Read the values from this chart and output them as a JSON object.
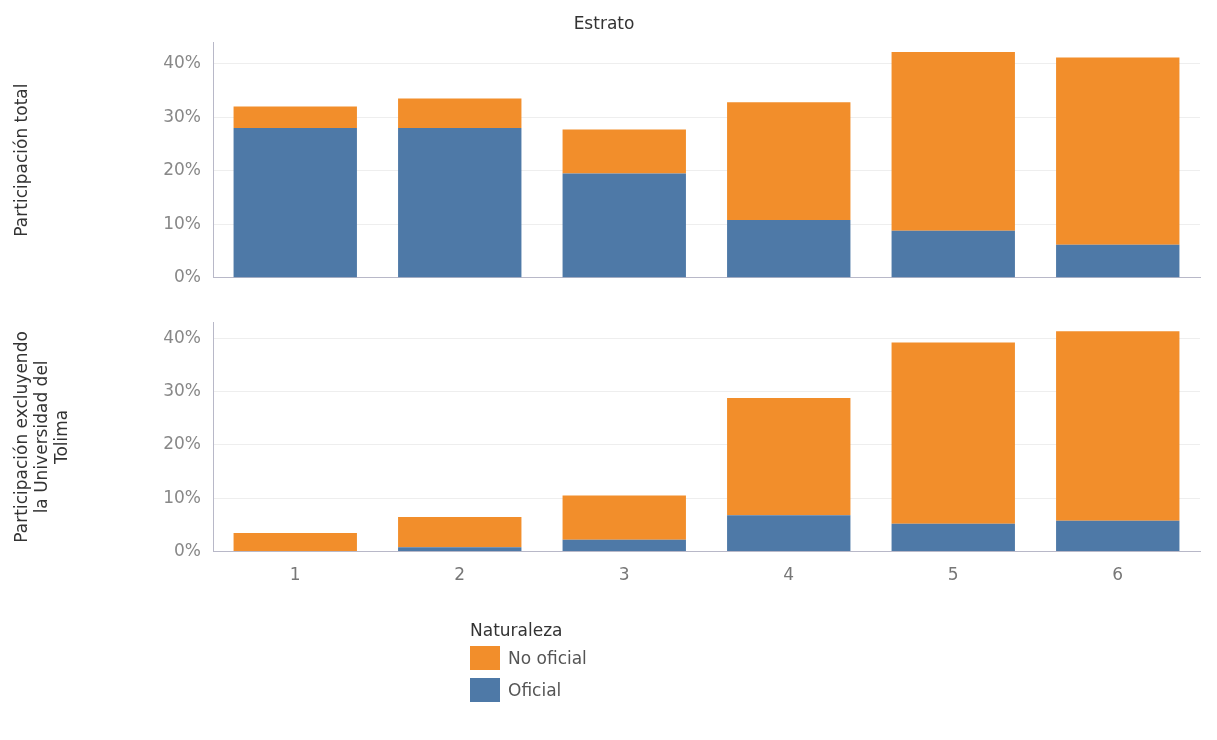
{
  "chart_data": [
    {
      "type": "bar",
      "title": "Estrato",
      "ylabel": "Participación total",
      "categories": [
        "1",
        "2",
        "3",
        "4",
        "5",
        "6"
      ],
      "stacked": true,
      "tick_labels": "y",
      "grid": "y",
      "legend": false,
      "series": [
        {
          "color": "#4e79a7",
          "values": [
            28,
            28,
            19.5,
            10.8,
            8.8,
            6.2
          ]
        },
        {
          "color": "#f28e2b",
          "values": [
            4,
            5.5,
            8.2,
            22,
            33.4,
            35
          ]
        }
      ],
      "ylim": [
        0,
        44
      ],
      "yticks": [
        {
          "value": 0,
          "label": "0%"
        },
        {
          "value": 10,
          "label": "10%"
        },
        {
          "value": 20,
          "label": "20%"
        },
        {
          "value": 30,
          "label": "30%"
        },
        {
          "value": 40,
          "label": "40%"
        }
      ]
    },
    {
      "type": "bar",
      "ylabel": "Participación excluyendo la Universidad del Tolima",
      "categories": [
        "1",
        "2",
        "3",
        "4",
        "5",
        "6"
      ],
      "stacked": true,
      "grid": "y",
      "legend": "bottom",
      "legend_title": "Naturaleza",
      "series": [
        {
          "name": "Oficial",
          "color": "#4e79a7",
          "values": [
            0,
            0.8,
            2.2,
            6.8,
            5.2,
            5.8
          ]
        },
        {
          "name": "No oficial",
          "color": "#f28e2b",
          "values": [
            3.5,
            5.7,
            8.3,
            22,
            34,
            35.5
          ]
        }
      ],
      "ylim": [
        0,
        43
      ],
      "yticks": [
        {
          "value": 0,
          "label": "0%"
        },
        {
          "value": 10,
          "label": "10%"
        },
        {
          "value": 20,
          "label": "20%"
        },
        {
          "value": 30,
          "label": "30%"
        },
        {
          "value": 40,
          "label": "40%"
        }
      ]
    }
  ]
}
